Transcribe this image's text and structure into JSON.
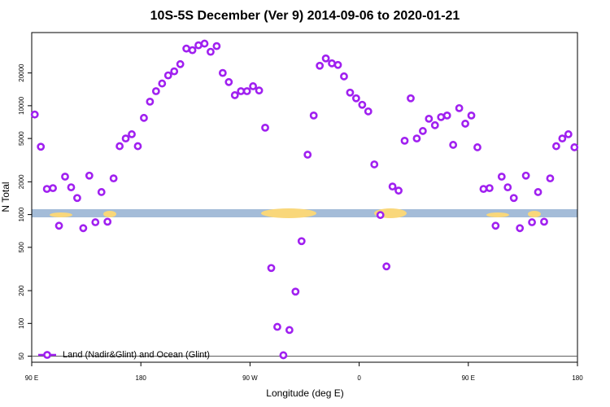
{
  "chart_data": {
    "type": "scatter",
    "title": "10S-5S December (Ver 9)   2014-09-06 to 2020-01-21",
    "x_label": "Longitude (deg E)",
    "y_label": "N Total",
    "log_y": true,
    "legend": "bottom-left",
    "hline": 50,
    "xlim": [
      90,
      540
    ],
    "xticks": [
      {
        "value": 90,
        "label": "90 E"
      },
      180,
      {
        "value": 270,
        "label": "90 W"
      },
      {
        "value": 360,
        "label": "0"
      },
      {
        "value": 450,
        "label": "90 E"
      },
      {
        "value": 540,
        "label": "180"
      }
    ],
    "ylim": [
      44,
      47000
    ],
    "yticks": [
      50,
      100,
      200,
      500,
      1000,
      2000,
      5000,
      10000,
      20000
    ],
    "series": [
      {
        "name": "Land (Nadir&Glint) and Ocean (Glint)",
        "color": "#a020f0",
        "x": [
          92.5,
          97.5,
          102.5,
          107.5,
          112.5,
          117.5,
          122.5,
          127.5,
          132.5,
          137.5,
          142.5,
          147.5,
          152.5,
          157.5,
          162.5,
          167.5,
          172.5,
          177.5,
          182.5,
          187.5,
          192.5,
          197.5,
          202.5,
          207.5,
          212.5,
          217.5,
          222.5,
          227.5,
          232.5,
          237.5,
          242.5,
          247.5,
          252.5,
          257.5,
          262.5,
          267.5,
          272.5,
          277.5,
          282.5,
          287.5,
          292.5,
          297.5,
          302.5,
          307.5,
          312.5,
          317.5,
          322.5,
          327.5,
          332.5,
          337.5,
          342.5,
          347.5,
          352.5,
          357.5,
          362.5,
          367.5,
          372.5,
          377.5,
          382.5,
          387.5,
          392.5,
          397.5,
          402.5,
          407.5,
          412.5,
          417.5,
          422.5,
          427.5,
          432.5,
          437.5,
          442.5,
          447.5,
          452.5,
          457.5,
          462.5,
          467.5,
          472.5,
          477.5,
          482.5,
          487.5,
          492.5,
          497.5,
          502.5,
          507.5,
          512.5,
          517.5,
          522.5,
          527.5,
          532.5,
          537.5
        ],
        "values": [
          8300,
          4200,
          1720,
          1750,
          790,
          2230,
          1780,
          1420,
          750,
          2280,
          850,
          1610,
          860,
          2150,
          4250,
          5000,
          5470,
          4250,
          7730,
          10900,
          13600,
          16000,
          19000,
          20700,
          24100,
          33500,
          32400,
          35900,
          37200,
          31300,
          35300,
          20000,
          16500,
          12500,
          13600,
          13600,
          15100,
          13800,
          6280,
          323,
          93,
          51,
          87,
          196,
          570,
          3550,
          8130,
          23300,
          27200,
          24500,
          23700,
          18600,
          13200,
          11700,
          10200,
          8870,
          2890,
          990,
          334,
          1810,
          1660,
          4770,
          11700,
          5000,
          5860,
          7590,
          6620,
          7860,
          8130,
          4370,
          9500,
          6840,
          8130,
          4150,
          1720,
          1750,
          790,
          2230,
          1780,
          1420,
          750,
          2280,
          850,
          1610,
          860,
          2150,
          4250,
          5000,
          5470,
          4150
        ]
      }
    ]
  }
}
